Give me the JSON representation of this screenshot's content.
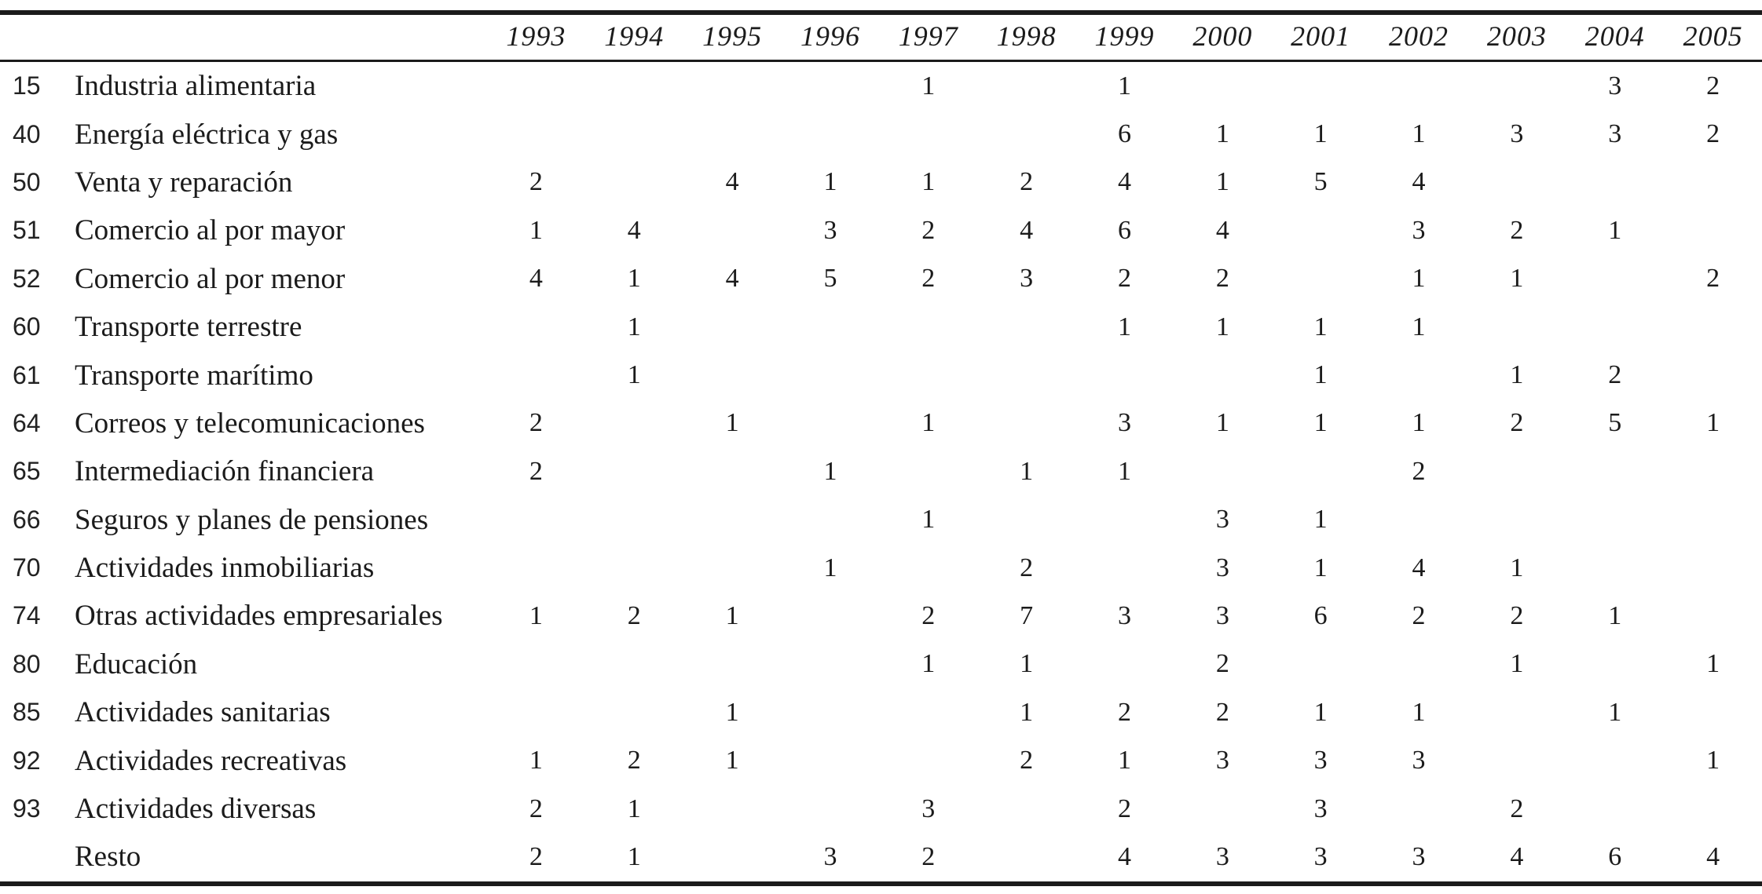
{
  "table": {
    "years": [
      "1993",
      "1994",
      "1995",
      "1996",
      "1997",
      "1998",
      "1999",
      "2000",
      "2001",
      "2002",
      "2003",
      "2004",
      "2005"
    ],
    "rows": [
      {
        "code": "15",
        "label": "Industria alimentaria",
        "values": [
          "",
          "",
          "",
          "",
          "1",
          "",
          "1",
          "",
          "",
          "",
          "",
          "3",
          "2"
        ]
      },
      {
        "code": "40",
        "label": "Energía eléctrica y gas",
        "values": [
          "",
          "",
          "",
          "",
          "",
          "",
          "6",
          "1",
          "1",
          "1",
          "3",
          "3",
          "2"
        ]
      },
      {
        "code": "50",
        "label": "Venta y reparación",
        "values": [
          "2",
          "",
          "4",
          "1",
          "1",
          "2",
          "4",
          "1",
          "5",
          "4",
          "",
          "",
          ""
        ]
      },
      {
        "code": "51",
        "label": "Comercio al por mayor",
        "values": [
          "1",
          "4",
          "",
          "3",
          "2",
          "4",
          "6",
          "4",
          "",
          "3",
          "2",
          "1",
          ""
        ]
      },
      {
        "code": "52",
        "label": "Comercio al por menor",
        "values": [
          "4",
          "1",
          "4",
          "5",
          "2",
          "3",
          "2",
          "2",
          "",
          "1",
          "1",
          "",
          "2"
        ]
      },
      {
        "code": "60",
        "label": "Transporte terrestre",
        "values": [
          "",
          "1",
          "",
          "",
          "",
          "",
          "1",
          "1",
          "1",
          "1",
          "",
          "",
          ""
        ]
      },
      {
        "code": "61",
        "label": "Transporte marítimo",
        "values": [
          "",
          "1",
          "",
          "",
          "",
          "",
          "",
          "",
          "1",
          "",
          "1",
          "2",
          ""
        ]
      },
      {
        "code": "64",
        "label": "Correos y telecomunicaciones",
        "values": [
          "2",
          "",
          "1",
          "",
          "1",
          "",
          "3",
          "1",
          "1",
          "1",
          "2",
          "5",
          "1"
        ]
      },
      {
        "code": "65",
        "label": "Intermediación financiera",
        "values": [
          "2",
          "",
          "",
          "1",
          "",
          "1",
          "1",
          "",
          "",
          "2",
          "",
          "",
          ""
        ]
      },
      {
        "code": "66",
        "label": "Seguros y planes de pensiones",
        "values": [
          "",
          "",
          "",
          "",
          "1",
          "",
          "",
          "3",
          "1",
          "",
          "",
          "",
          ""
        ]
      },
      {
        "code": "70",
        "label": "Actividades inmobiliarias",
        "values": [
          "",
          "",
          "",
          "1",
          "",
          "2",
          "",
          "3",
          "1",
          "4",
          "1",
          "",
          ""
        ]
      },
      {
        "code": "74",
        "label": "Otras actividades empresariales",
        "values": [
          "1",
          "2",
          "1",
          "",
          "2",
          "7",
          "3",
          "3",
          "6",
          "2",
          "2",
          "1",
          ""
        ]
      },
      {
        "code": "80",
        "label": "Educación",
        "values": [
          "",
          "",
          "",
          "",
          "1",
          "1",
          "",
          "2",
          "",
          "",
          "1",
          "",
          "1"
        ]
      },
      {
        "code": "85",
        "label": "Actividades sanitarias",
        "values": [
          "",
          "",
          "1",
          "",
          "",
          "1",
          "2",
          "2",
          "1",
          "1",
          "",
          "1",
          ""
        ]
      },
      {
        "code": "92",
        "label": "Actividades recreativas",
        "values": [
          "1",
          "2",
          "1",
          "",
          "",
          "2",
          "1",
          "3",
          "3",
          "3",
          "",
          "",
          "1"
        ]
      },
      {
        "code": "93",
        "label": "Actividades diversas",
        "values": [
          "2",
          "1",
          "",
          "",
          "3",
          "",
          "2",
          "",
          "3",
          "",
          "2",
          "",
          ""
        ]
      },
      {
        "code": "",
        "label": "Resto",
        "values": [
          "2",
          "1",
          "",
          "3",
          "2",
          "",
          "4",
          "3",
          "3",
          "3",
          "4",
          "6",
          "4"
        ]
      }
    ]
  }
}
